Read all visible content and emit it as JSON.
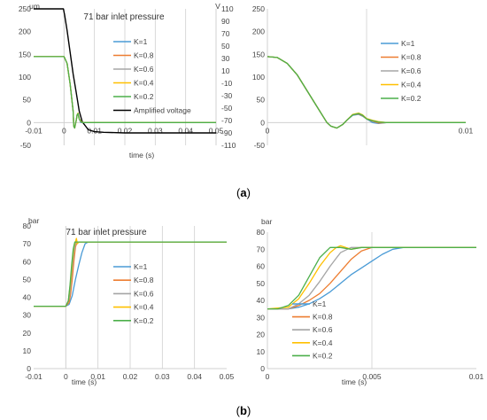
{
  "captions": {
    "a_open": "(",
    "a_letter": "a",
    "a_close": ")",
    "b_open": "(",
    "b_letter": "b",
    "b_close": ")"
  },
  "colors": {
    "K=1": "#4a9bd6",
    "K=0.8": "#ed7d31",
    "K=0.6": "#a5a5a5",
    "K=0.4": "#ffc000",
    "K=0.2": "#4caf4a",
    "Amplified voltage": "#000000",
    "axis": "#d0d0d0"
  },
  "chart_data": [
    {
      "id": "a-left",
      "type": "line",
      "title": "71 bar inlet pressure",
      "ylabel": "μm",
      "y2label": "V",
      "xlabel": "time (s)",
      "xlim": [
        -0.01,
        0.05
      ],
      "ylim": [
        -50,
        250
      ],
      "y2lim": [
        -110,
        110
      ],
      "xticks": [
        -0.01,
        0,
        0.01,
        0.02,
        0.03,
        0.04,
        0.05
      ],
      "xtick_labels": [
        "-0.01",
        "0",
        "0.01",
        "0.02",
        "0.03",
        "0.04",
        "0.05"
      ],
      "yticks": [
        -50,
        0,
        50,
        100,
        150,
        200,
        250
      ],
      "ytick_labels": [
        "-50",
        "0",
        "50",
        "100",
        "150",
        "200",
        "250"
      ],
      "y2ticks": [
        -110,
        -90,
        -70,
        -50,
        -30,
        -10,
        10,
        30,
        50,
        70,
        90,
        110
      ],
      "y2tick_labels": [
        "-110",
        "-90",
        "-70",
        "-50",
        "-30",
        "-10",
        "10",
        "30",
        "50",
        "70",
        "90",
        "110"
      ],
      "vgrid": [
        0.01,
        0.02,
        0.03,
        0.04
      ],
      "legend": {
        "position": "center-right"
      },
      "series": [
        {
          "name": "Amplified voltage",
          "axis": "y2",
          "x": [
            -0.01,
            -0.0002,
            0.0002,
            0.001,
            0.002,
            0.003,
            0.004,
            0.005,
            0.006,
            0.008,
            0.01,
            0.013,
            0.02,
            0.05
          ],
          "y": [
            110,
            110,
            100,
            75,
            40,
            5,
            -25,
            -55,
            -72,
            -85,
            -88,
            -89,
            -90,
            -90
          ]
        },
        {
          "name": "K=1",
          "x": [
            -0.01,
            0,
            0.001,
            0.002,
            0.003,
            0.0032,
            0.0035,
            0.004,
            0.0043,
            0.0046,
            0.005,
            0.0055,
            0.006,
            0.007,
            0.05
          ],
          "y": [
            145,
            145,
            130,
            85,
            25,
            -8,
            -12,
            5,
            17,
            18,
            8,
            0,
            0,
            0,
            0
          ]
        },
        {
          "name": "K=0.8",
          "x": [
            -0.01,
            0,
            0.001,
            0.002,
            0.003,
            0.0032,
            0.0035,
            0.004,
            0.0043,
            0.0046,
            0.005,
            0.0055,
            0.006,
            0.007,
            0.05
          ],
          "y": [
            145,
            145,
            130,
            85,
            25,
            -8,
            -12,
            5,
            17,
            19,
            8,
            2,
            0,
            0,
            0
          ]
        },
        {
          "name": "K=0.6",
          "x": [
            -0.01,
            0,
            0.001,
            0.002,
            0.003,
            0.0032,
            0.0035,
            0.004,
            0.0043,
            0.0046,
            0.005,
            0.0055,
            0.006,
            0.007,
            0.05
          ],
          "y": [
            145,
            145,
            130,
            85,
            25,
            -8,
            -12,
            5,
            17,
            20,
            8,
            3,
            0,
            0,
            0
          ]
        },
        {
          "name": "K=0.4",
          "x": [
            -0.01,
            0,
            0.001,
            0.002,
            0.003,
            0.0032,
            0.0035,
            0.004,
            0.0043,
            0.0046,
            0.005,
            0.0055,
            0.006,
            0.007,
            0.05
          ],
          "y": [
            145,
            145,
            130,
            85,
            25,
            -8,
            -12,
            5,
            17,
            21,
            8,
            4,
            0,
            0,
            0
          ]
        },
        {
          "name": "K=0.2",
          "x": [
            -0.01,
            0,
            0.001,
            0.002,
            0.003,
            0.0032,
            0.0035,
            0.004,
            0.0043,
            0.0046,
            0.005,
            0.0055,
            0.006,
            0.007,
            0.05
          ],
          "y": [
            145,
            145,
            130,
            85,
            25,
            -8,
            -12,
            5,
            17,
            20,
            8,
            3,
            0,
            0,
            0
          ]
        }
      ]
    },
    {
      "id": "a-right",
      "type": "line",
      "title": "",
      "ylabel": "",
      "xlabel": "",
      "xlim": [
        0,
        0.01
      ],
      "ylim": [
        -50,
        250
      ],
      "xticks": [
        0,
        0.005,
        0.01
      ],
      "xtick_labels": [
        "0",
        "",
        "0.01"
      ],
      "yticks": [
        -50,
        0,
        50,
        100,
        150,
        200,
        250
      ],
      "ytick_labels": [
        "-50",
        "0",
        "50",
        "100",
        "150",
        "200",
        "250"
      ],
      "vgrid": [
        0.005
      ],
      "legend": {
        "position": "top-right"
      },
      "series": [
        {
          "name": "K=1",
          "x": [
            0,
            0.0005,
            0.001,
            0.0015,
            0.002,
            0.0025,
            0.003,
            0.0032,
            0.0035,
            0.0038,
            0.004,
            0.0043,
            0.0046,
            0.0048,
            0.005,
            0.0053,
            0.0056,
            0.006,
            0.007,
            0.01
          ],
          "y": [
            145,
            143,
            130,
            105,
            70,
            35,
            0,
            -8,
            -12,
            -4,
            5,
            16,
            18,
            14,
            8,
            0,
            -2,
            0,
            0,
            0
          ]
        },
        {
          "name": "K=0.8",
          "x": [
            0,
            0.0005,
            0.001,
            0.0015,
            0.002,
            0.0025,
            0.003,
            0.0032,
            0.0035,
            0.0038,
            0.004,
            0.0043,
            0.0046,
            0.0048,
            0.005,
            0.0053,
            0.0056,
            0.006,
            0.007,
            0.01
          ],
          "y": [
            145,
            143,
            130,
            105,
            70,
            35,
            0,
            -8,
            -12,
            -4,
            5,
            17,
            19,
            15,
            8,
            3,
            -1,
            0,
            0,
            0
          ]
        },
        {
          "name": "K=0.6",
          "x": [
            0,
            0.0005,
            0.001,
            0.0015,
            0.002,
            0.0025,
            0.003,
            0.0032,
            0.0035,
            0.0038,
            0.004,
            0.0043,
            0.0046,
            0.0048,
            0.005,
            0.0053,
            0.0056,
            0.006,
            0.007,
            0.01
          ],
          "y": [
            145,
            143,
            130,
            105,
            70,
            35,
            0,
            -8,
            -12,
            -4,
            5,
            17,
            20,
            16,
            8,
            4,
            1,
            0,
            0,
            0
          ]
        },
        {
          "name": "K=0.4",
          "x": [
            0,
            0.0005,
            0.001,
            0.0015,
            0.002,
            0.0025,
            0.003,
            0.0032,
            0.0035,
            0.0038,
            0.004,
            0.0043,
            0.0046,
            0.0048,
            0.005,
            0.0053,
            0.0056,
            0.006,
            0.007,
            0.01
          ],
          "y": [
            145,
            143,
            130,
            105,
            70,
            35,
            0,
            -8,
            -12,
            -4,
            5,
            18,
            21,
            17,
            9,
            5,
            2,
            0,
            0,
            0
          ]
        },
        {
          "name": "K=0.2",
          "x": [
            0,
            0.0005,
            0.001,
            0.0015,
            0.002,
            0.0025,
            0.003,
            0.0032,
            0.0035,
            0.0038,
            0.004,
            0.0043,
            0.0046,
            0.0048,
            0.005,
            0.0053,
            0.0056,
            0.006,
            0.007,
            0.01
          ],
          "y": [
            145,
            143,
            130,
            105,
            70,
            35,
            0,
            -8,
            -12,
            -4,
            5,
            17,
            20,
            16,
            8,
            4,
            1,
            0,
            0,
            0
          ]
        }
      ]
    },
    {
      "id": "b-left",
      "type": "line",
      "title": "71 bar inlet pressure",
      "ylabel": "bar",
      "xlabel": "time (s)",
      "xlim": [
        -0.01,
        0.05
      ],
      "ylim": [
        0,
        80
      ],
      "xticks": [
        -0.01,
        0,
        0.01,
        0.02,
        0.03,
        0.04,
        0.05
      ],
      "xtick_labels": [
        "-0.01",
        "0",
        "0.01",
        "0.02",
        "0.03",
        "0.04",
        "0.05"
      ],
      "yticks": [
        0,
        10,
        20,
        30,
        40,
        50,
        60,
        70,
        80
      ],
      "ytick_labels": [
        "0",
        "10",
        "20",
        "30",
        "40",
        "50",
        "60",
        "70",
        "80"
      ],
      "vgrid": [
        0.01,
        0.02,
        0.03,
        0.04
      ],
      "legend": {
        "position": "center-right"
      },
      "series": [
        {
          "name": "K=1",
          "x": [
            -0.01,
            0,
            0.001,
            0.002,
            0.003,
            0.004,
            0.005,
            0.006,
            0.007,
            0.05
          ],
          "y": [
            35,
            35,
            36,
            41,
            50,
            58,
            65,
            70,
            71,
            71
          ]
        },
        {
          "name": "K=0.8",
          "x": [
            -0.01,
            0,
            0.001,
            0.0015,
            0.002,
            0.0025,
            0.003,
            0.0035,
            0.004,
            0.005,
            0.05
          ],
          "y": [
            35,
            35,
            37,
            42,
            50,
            60,
            68,
            71,
            71,
            71,
            71
          ]
        },
        {
          "name": "K=0.6",
          "x": [
            -0.01,
            0,
            0.001,
            0.0015,
            0.002,
            0.0025,
            0.003,
            0.0035,
            0.004,
            0.05
          ],
          "y": [
            35,
            35,
            39,
            46,
            56,
            65,
            70,
            71,
            71,
            71
          ]
        },
        {
          "name": "K=0.4",
          "x": [
            -0.01,
            0,
            0.0008,
            0.0015,
            0.002,
            0.0025,
            0.003,
            0.0033,
            0.0036,
            0.004,
            0.05
          ],
          "y": [
            35,
            35,
            38,
            49,
            60,
            68,
            71,
            73,
            70,
            71,
            71
          ]
        },
        {
          "name": "K=0.2",
          "x": [
            -0.01,
            0,
            0.0008,
            0.0013,
            0.0018,
            0.0023,
            0.0028,
            0.0032,
            0.004,
            0.05
          ],
          "y": [
            35,
            35,
            38,
            47,
            58,
            67,
            71,
            71,
            71,
            71
          ]
        }
      ]
    },
    {
      "id": "b-right",
      "type": "line",
      "title": "",
      "ylabel": "bar",
      "xlabel": "time (s)",
      "xlim": [
        0,
        0.01
      ],
      "ylim": [
        0,
        80
      ],
      "xticks": [
        0,
        0.005,
        0.01
      ],
      "xtick_labels": [
        "0",
        "0.005",
        "0.01"
      ],
      "yticks": [
        0,
        10,
        20,
        30,
        40,
        50,
        60,
        70,
        80
      ],
      "ytick_labels": [
        "0",
        "10",
        "20",
        "30",
        "40",
        "50",
        "60",
        "70",
        "80"
      ],
      "vgrid": [
        0.005
      ],
      "legend": {
        "position": "bottom-right"
      },
      "series": [
        {
          "name": "K=1",
          "x": [
            0,
            0.001,
            0.0015,
            0.002,
            0.0025,
            0.003,
            0.0035,
            0.004,
            0.0045,
            0.005,
            0.0055,
            0.006,
            0.0065,
            0.007,
            0.01
          ],
          "y": [
            35,
            35,
            36,
            38,
            41,
            45,
            50,
            55,
            59,
            63,
            67,
            70,
            71,
            71,
            71
          ]
        },
        {
          "name": "K=0.8",
          "x": [
            0,
            0.001,
            0.0015,
            0.002,
            0.0025,
            0.003,
            0.0035,
            0.004,
            0.0045,
            0.005,
            0.0055,
            0.006,
            0.01
          ],
          "y": [
            35,
            35,
            37,
            40,
            44,
            50,
            57,
            64,
            69,
            71,
            71,
            71,
            71
          ]
        },
        {
          "name": "K=0.6",
          "x": [
            0,
            0.001,
            0.0015,
            0.002,
            0.0025,
            0.003,
            0.0035,
            0.004,
            0.0045,
            0.01
          ],
          "y": [
            35,
            35,
            38,
            43,
            51,
            60,
            68,
            71,
            71,
            71
          ]
        },
        {
          "name": "K=0.4",
          "x": [
            0,
            0.001,
            0.0015,
            0.002,
            0.0025,
            0.003,
            0.0033,
            0.0035,
            0.004,
            0.0045,
            0.01
          ],
          "y": [
            35,
            36,
            41,
            50,
            60,
            68,
            71,
            72,
            70,
            71,
            71
          ]
        },
        {
          "name": "K=0.2",
          "x": [
            0,
            0.0005,
            0.001,
            0.0015,
            0.002,
            0.0025,
            0.003,
            0.0035,
            0.004,
            0.0045,
            0.01
          ],
          "y": [
            35,
            35,
            37,
            43,
            54,
            65,
            71,
            71,
            70,
            71,
            71
          ]
        }
      ]
    }
  ]
}
